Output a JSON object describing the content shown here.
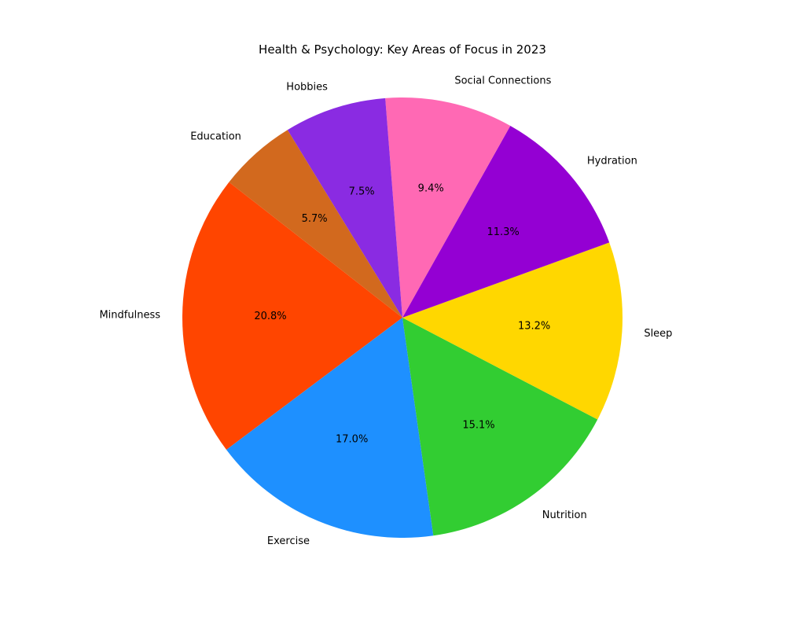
{
  "chart_data": {
    "type": "pie",
    "title": "Health & Psychology: Key Areas of Focus in 2023",
    "start_angle_deg": 142,
    "direction": "counterclockwise",
    "slices": [
      {
        "label": "Mindfulness",
        "value": 20.8,
        "pct_label": "20.8%",
        "color": "#FF4500"
      },
      {
        "label": "Exercise",
        "value": 17.0,
        "pct_label": "17.0%",
        "color": "#1E90FF"
      },
      {
        "label": "Nutrition",
        "value": 15.1,
        "pct_label": "15.1%",
        "color": "#32CD32"
      },
      {
        "label": "Sleep",
        "value": 13.2,
        "pct_label": "13.2%",
        "color": "#FFD700"
      },
      {
        "label": "Hydration",
        "value": 11.3,
        "pct_label": "11.3%",
        "color": "#9400D3"
      },
      {
        "label": "Social Connections",
        "value": 9.4,
        "pct_label": "9.4%",
        "color": "#FF69B4"
      },
      {
        "label": "Hobbies",
        "value": 7.5,
        "pct_label": "7.5%",
        "color": "#8A2BE2"
      },
      {
        "label": "Education",
        "value": 5.7,
        "pct_label": "5.7%",
        "color": "#D2691E"
      }
    ]
  }
}
